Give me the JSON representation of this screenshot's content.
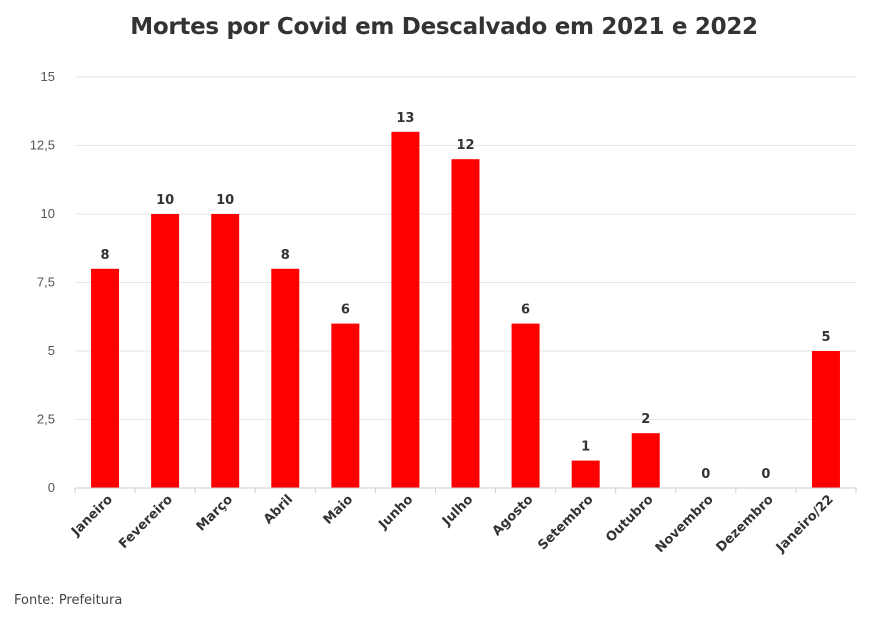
{
  "chart_data": {
    "type": "bar",
    "title": "Mortes por Covid em Descalvado em 2021 e 2022",
    "categories": [
      "Janeiro",
      "Fevereiro",
      "Março",
      "Abril",
      "Maio",
      "Junho",
      "Julho",
      "Agosto",
      "Setembro",
      "Outubro",
      "Novembro",
      "Dezembro",
      "Janeiro/22"
    ],
    "values": [
      8,
      10,
      10,
      8,
      6,
      13,
      12,
      6,
      1,
      2,
      0,
      0,
      5
    ],
    "ylim": [
      0,
      15
    ],
    "yticks": [
      "0",
      "2,5",
      "5",
      "7,5",
      "10",
      "12,5",
      "15"
    ],
    "grid": true,
    "bar_color": "#ff0000",
    "grid_color": "#e6e6e6"
  },
  "source": "Fonte: Prefeitura"
}
